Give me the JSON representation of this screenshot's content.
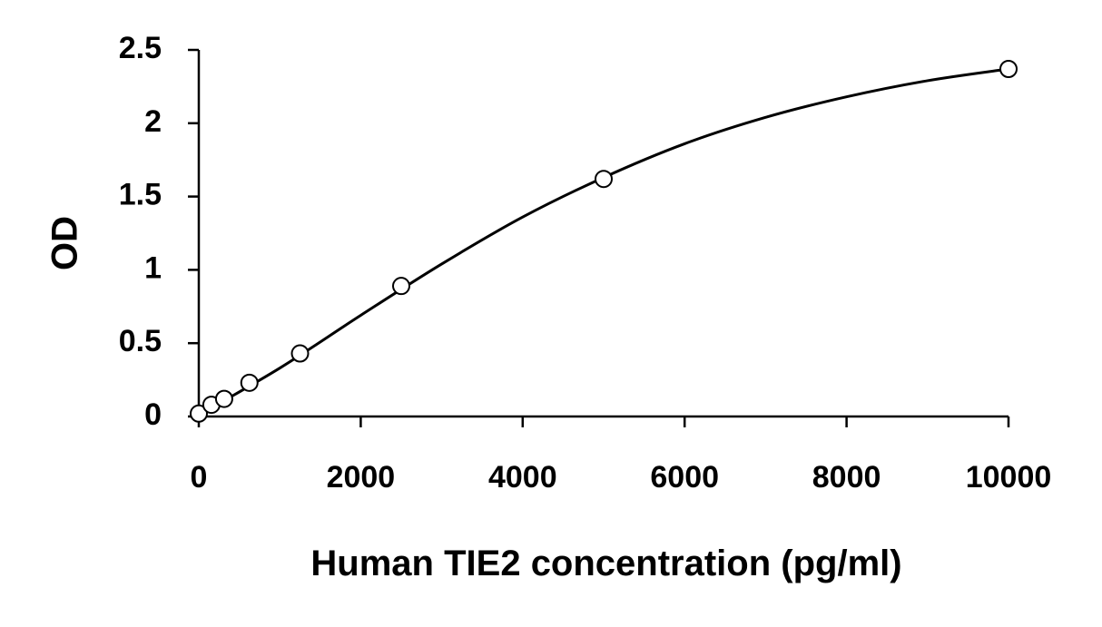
{
  "chart_data": {
    "type": "scatter",
    "title": "",
    "xlabel": "Human TIE2 concentration (pg/ml)",
    "ylabel": "OD",
    "xlim": [
      0,
      10000
    ],
    "ylim": [
      0,
      2.5
    ],
    "x_ticks": [
      0,
      2000,
      4000,
      6000,
      8000,
      10000
    ],
    "x_tick_labels": [
      "0",
      "2000",
      "4000",
      "6000",
      "8000",
      "10000"
    ],
    "y_ticks": [
      0,
      0.5,
      1,
      1.5,
      2,
      2.5
    ],
    "y_tick_labels": [
      "0",
      "0.5",
      "1",
      "1.5",
      "2",
      "2.5"
    ],
    "grid": false,
    "legend": "none",
    "series": [
      {
        "marker": "open-circle",
        "x": [
          0,
          156,
          313,
          625,
          1250,
          2500,
          5000,
          10000
        ],
        "y": [
          0.02,
          0.08,
          0.12,
          0.23,
          0.43,
          0.89,
          1.62,
          2.37
        ]
      }
    ],
    "fit_curve": {
      "style": "smooth-line",
      "x": [
        0,
        1000,
        2000,
        3000,
        4000,
        5000,
        6000,
        7000,
        8000,
        9000,
        10000
      ],
      "y": [
        0.01,
        0.33,
        0.69,
        1.04,
        1.36,
        1.63,
        1.86,
        2.04,
        2.18,
        2.29,
        2.37
      ]
    }
  }
}
